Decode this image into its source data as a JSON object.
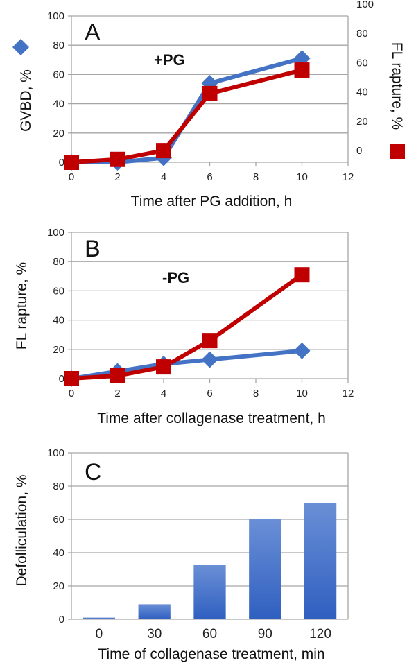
{
  "chart_data": [
    {
      "type": "line",
      "panel": "A",
      "annotation": "+PG",
      "xlabel": "Time after PG addition, h",
      "ylabel": "GVBD, %",
      "ylabel_right": "FL rapture, %",
      "xlim": [
        0,
        12
      ],
      "ylim": [
        0,
        100
      ],
      "ylim_right": [
        0,
        100
      ],
      "x_ticks": [
        "0",
        "2",
        "4",
        "6",
        "8",
        "10",
        "12"
      ],
      "y_ticks": [
        "0",
        "20",
        "40",
        "60",
        "80",
        "100"
      ],
      "y_ticks_right": [
        "0",
        "20",
        "40",
        "60",
        "80",
        "100"
      ],
      "grid": true,
      "series": [
        {
          "name": "GVBD",
          "marker": "diamond",
          "color": "#4472C4",
          "axis": "left",
          "x": [
            0,
            2,
            4,
            6,
            10
          ],
          "values": [
            0,
            0,
            3,
            54,
            71
          ]
        },
        {
          "name": "FL rapture",
          "marker": "square",
          "color": "#C00000",
          "axis": "right",
          "x": [
            0,
            2,
            4,
            6,
            10
          ],
          "values": [
            0,
            2,
            8,
            47,
            63
          ]
        }
      ]
    },
    {
      "type": "line",
      "panel": "B",
      "annotation": "-PG",
      "xlabel": "Time after collagenase treatment, h",
      "ylabel": "FL rapture, %",
      "xlim": [
        0,
        12
      ],
      "ylim": [
        0,
        100
      ],
      "x_ticks": [
        "0",
        "2",
        "4",
        "6",
        "8",
        "10",
        "12"
      ],
      "y_ticks": [
        "0",
        "20",
        "40",
        "60",
        "80",
        "100"
      ],
      "grid": true,
      "series": [
        {
          "name": "GVBD",
          "marker": "diamond",
          "color": "#4472C4",
          "x": [
            0,
            2,
            4,
            6,
            10
          ],
          "values": [
            0,
            5,
            10,
            13,
            19
          ]
        },
        {
          "name": "FL rapture",
          "marker": "square",
          "color": "#C00000",
          "x": [
            0,
            2,
            4,
            6,
            10
          ],
          "values": [
            0,
            2,
            8,
            26,
            71
          ]
        }
      ]
    },
    {
      "type": "bar",
      "panel": "C",
      "xlabel": "Time of collagenase treatment, min",
      "ylabel": "Defolliculation, %",
      "ylim": [
        0,
        100
      ],
      "categories": [
        "0",
        "30",
        "60",
        "90",
        "120"
      ],
      "y_ticks": [
        "0",
        "20",
        "40",
        "60",
        "80",
        "100"
      ],
      "grid": true,
      "series": [
        {
          "name": "Defolliculation",
          "color": "#4472C4",
          "values": [
            1,
            9,
            32.5,
            60,
            70
          ]
        }
      ]
    }
  ]
}
